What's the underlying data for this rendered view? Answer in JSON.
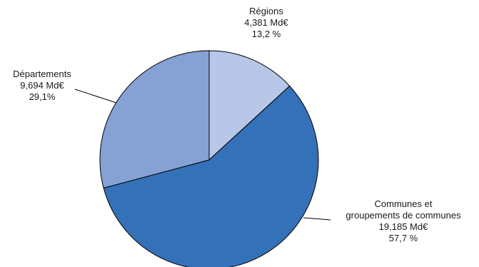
{
  "chart_data": {
    "type": "pie",
    "title": "",
    "colors": {
      "regions": "#b8c7e8",
      "departements": "#86a2d4",
      "communes": "#3471b8",
      "stroke": "#000000"
    },
    "slices": [
      {
        "key": "regions",
        "label": "Régions",
        "value_text": "4,381 Md€",
        "percent_text": "13,2 %",
        "value": 4.381,
        "percent": 13.2
      },
      {
        "key": "communes",
        "label_line1": "Communes et",
        "label_line2": "groupements de communes",
        "value_text": "19,185 Md€",
        "percent_text": "57,7 %",
        "value": 19.185,
        "percent": 57.7
      },
      {
        "key": "departements",
        "label": "Départements",
        "value_text": "9,694 Md€",
        "percent_text": "29,1%",
        "value": 9.694,
        "percent": 29.1
      }
    ]
  }
}
